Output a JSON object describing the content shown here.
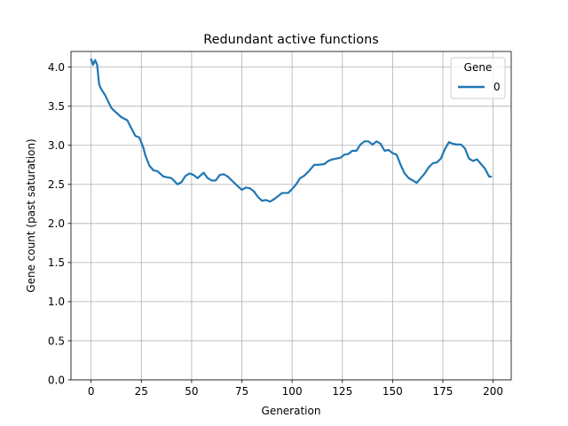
{
  "chart_data": {
    "type": "line",
    "title": "Redundant active functions",
    "xlabel": "Generation",
    "ylabel": "Gene count (past saturation)",
    "xlim": [
      -10,
      209
    ],
    "ylim": [
      0,
      4.2
    ],
    "xticks": [
      0,
      25,
      50,
      75,
      100,
      125,
      150,
      175,
      200
    ],
    "yticks": [
      0.0,
      0.5,
      1.0,
      1.5,
      2.0,
      2.5,
      3.0,
      3.5,
      4.0
    ],
    "xtick_labels": [
      "0",
      "25",
      "50",
      "75",
      "100",
      "125",
      "150",
      "175",
      "200"
    ],
    "ytick_labels": [
      "0.0",
      "0.5",
      "1.0",
      "1.5",
      "2.0",
      "2.5",
      "3.0",
      "3.5",
      "4.0"
    ],
    "grid": true,
    "legend": {
      "title": "Gene",
      "placement": "top-right"
    },
    "series": [
      {
        "name": "0",
        "color": "#1f77b4",
        "x": [
          0,
          1,
          2,
          3,
          4,
          5,
          7,
          10,
          12,
          15,
          18,
          20,
          22,
          24,
          26,
          27,
          29,
          31,
          33,
          36,
          38,
          40,
          43,
          45,
          47,
          49,
          51,
          53,
          56,
          58,
          60,
          62,
          64,
          66,
          68,
          70,
          72,
          75,
          77,
          79,
          81,
          83,
          85,
          87,
          89,
          91,
          93,
          95,
          98,
          100,
          102,
          104,
          106,
          108,
          111,
          113,
          116,
          118,
          120,
          122,
          124,
          126,
          128,
          130,
          132,
          134,
          136,
          138,
          140,
          142,
          144,
          146,
          148,
          150,
          152,
          154,
          156,
          158,
          160,
          162,
          164,
          166,
          168,
          170,
          172,
          174,
          176,
          178,
          180,
          182,
          184,
          186,
          188,
          190,
          192,
          194,
          196,
          198,
          199
        ],
        "y": [
          4.1,
          4.03,
          4.09,
          4.03,
          3.78,
          3.72,
          3.64,
          3.48,
          3.43,
          3.36,
          3.32,
          3.22,
          3.12,
          3.1,
          2.97,
          2.87,
          2.74,
          2.68,
          2.67,
          2.6,
          2.59,
          2.58,
          2.5,
          2.53,
          2.61,
          2.64,
          2.62,
          2.58,
          2.65,
          2.58,
          2.55,
          2.55,
          2.62,
          2.63,
          2.6,
          2.55,
          2.5,
          2.43,
          2.46,
          2.45,
          2.41,
          2.34,
          2.29,
          2.3,
          2.28,
          2.31,
          2.35,
          2.39,
          2.39,
          2.44,
          2.5,
          2.58,
          2.61,
          2.66,
          2.75,
          2.75,
          2.76,
          2.8,
          2.82,
          2.83,
          2.84,
          2.88,
          2.89,
          2.93,
          2.93,
          3.01,
          3.05,
          3.05,
          3.01,
          3.05,
          3.02,
          2.93,
          2.94,
          2.9,
          2.88,
          2.75,
          2.64,
          2.58,
          2.55,
          2.52,
          2.58,
          2.64,
          2.72,
          2.77,
          2.78,
          2.83,
          2.95,
          3.04,
          3.02,
          3.01,
          3.01,
          2.96,
          2.83,
          2.8,
          2.82,
          2.76,
          2.7,
          2.6,
          2.6
        ]
      }
    ]
  }
}
